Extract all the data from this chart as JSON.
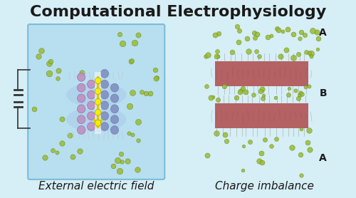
{
  "title": "Computational Electrophysiology",
  "title_fontsize": 16,
  "title_fontweight": "bold",
  "title_color": "#1a1a1a",
  "bg_color": "#d6eef5",
  "fig_bg_color": "#d6eef5",
  "label_left": "External electric field",
  "label_right": "Charge imbalance",
  "label_fontsize": 11,
  "label_style": "italic",
  "label_color": "#1a1a1a",
  "box_left_color": "#b8dff0",
  "box_left_border": "#7bbcd8",
  "membrane_color_left": "#b0c8e8",
  "membrane_color_right": "#808080",
  "protein_color1": "#c090c0",
  "protein_color2": "#8090c0",
  "lipid_color": "#aa3333",
  "ion_color": "#99bb33",
  "arrow_color": "#ddcc00",
  "A_label_color": "#1a1a1a",
  "B_label_color": "#1a1a1a",
  "capacitor_color": "#333333"
}
